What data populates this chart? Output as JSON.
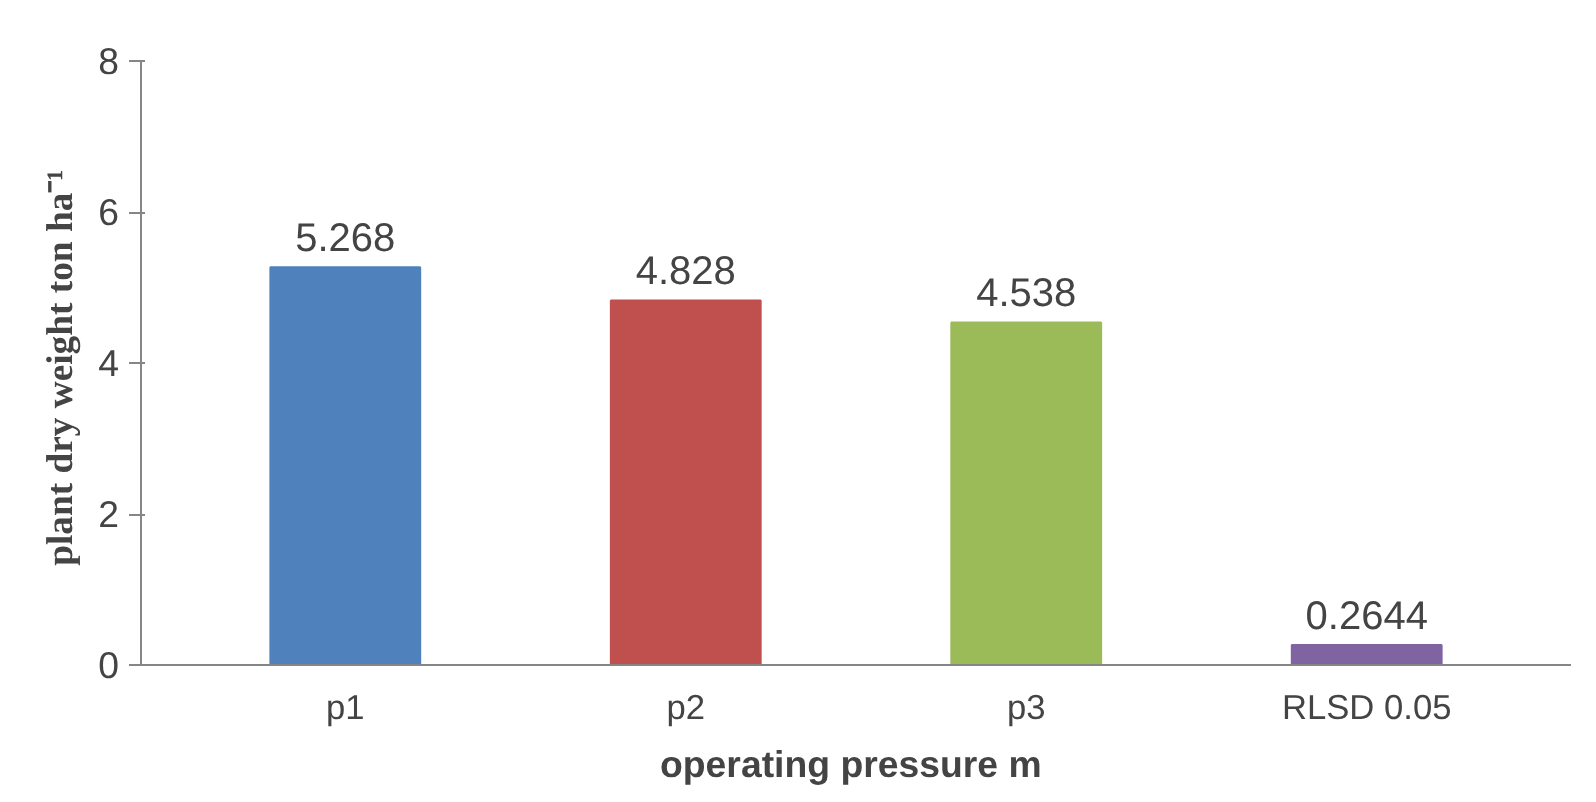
{
  "chart_data": {
    "type": "bar",
    "xlabel": "operating pressure  m",
    "ylabel": "plant dry weight  ton ha⁻¹",
    "categories": [
      "p1",
      "p2",
      "p3",
      "RLSD 0.05"
    ],
    "values": [
      5.268,
      4.828,
      4.538,
      0.2644
    ],
    "colors": [
      "#4f81bd",
      "#c0504d",
      "#9bbb59",
      "#8064a2"
    ],
    "ylim": [
      0,
      8
    ],
    "yticks": [
      0,
      2,
      4,
      6,
      8
    ],
    "data_labels": true,
    "grid": false
  }
}
